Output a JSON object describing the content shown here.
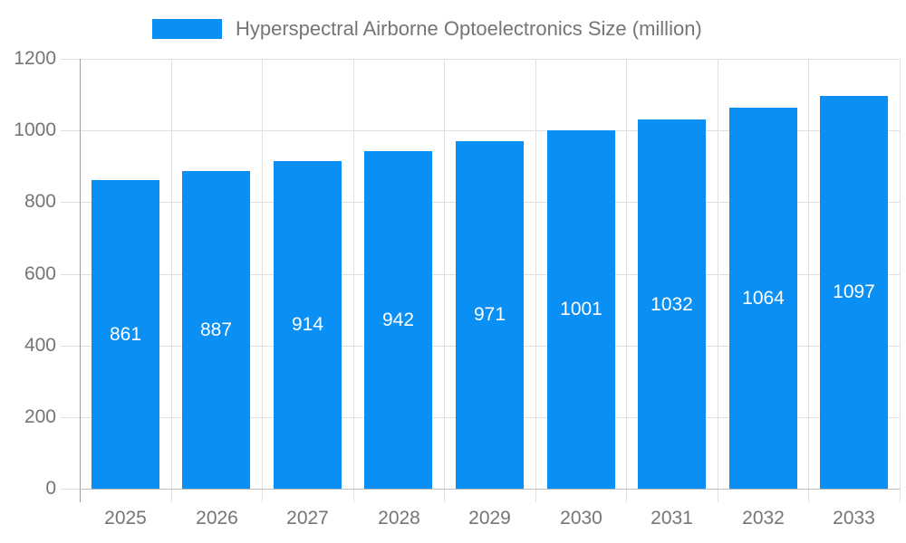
{
  "chart_data": {
    "type": "bar",
    "title": "Hyperspectral Airborne Optoelectronics Size (million)",
    "categories": [
      "2025",
      "2026",
      "2027",
      "2028",
      "2029",
      "2030",
      "2031",
      "2032",
      "2033"
    ],
    "values": [
      861,
      887,
      914,
      942,
      971,
      1001,
      1032,
      1064,
      1097
    ],
    "xlabel": "",
    "ylabel": "",
    "ylim": [
      0,
      1200
    ],
    "ytick_step": 200,
    "ytick_labels": [
      "0",
      "200",
      "400",
      "600",
      "800",
      "1000",
      "1200"
    ],
    "grid": true,
    "legend_position": "top",
    "colors": {
      "bar": "#0a8ff5",
      "bar_value_text": "#ffffff",
      "axis_text": "#757575",
      "gridline": "#e0e0e0",
      "left_axis_line": "#9e9e9e",
      "bottom_axis_line": "#bdbdbd"
    }
  },
  "legend": {
    "label": "Hyperspectral Airborne Optoelectronics Size (million)"
  }
}
